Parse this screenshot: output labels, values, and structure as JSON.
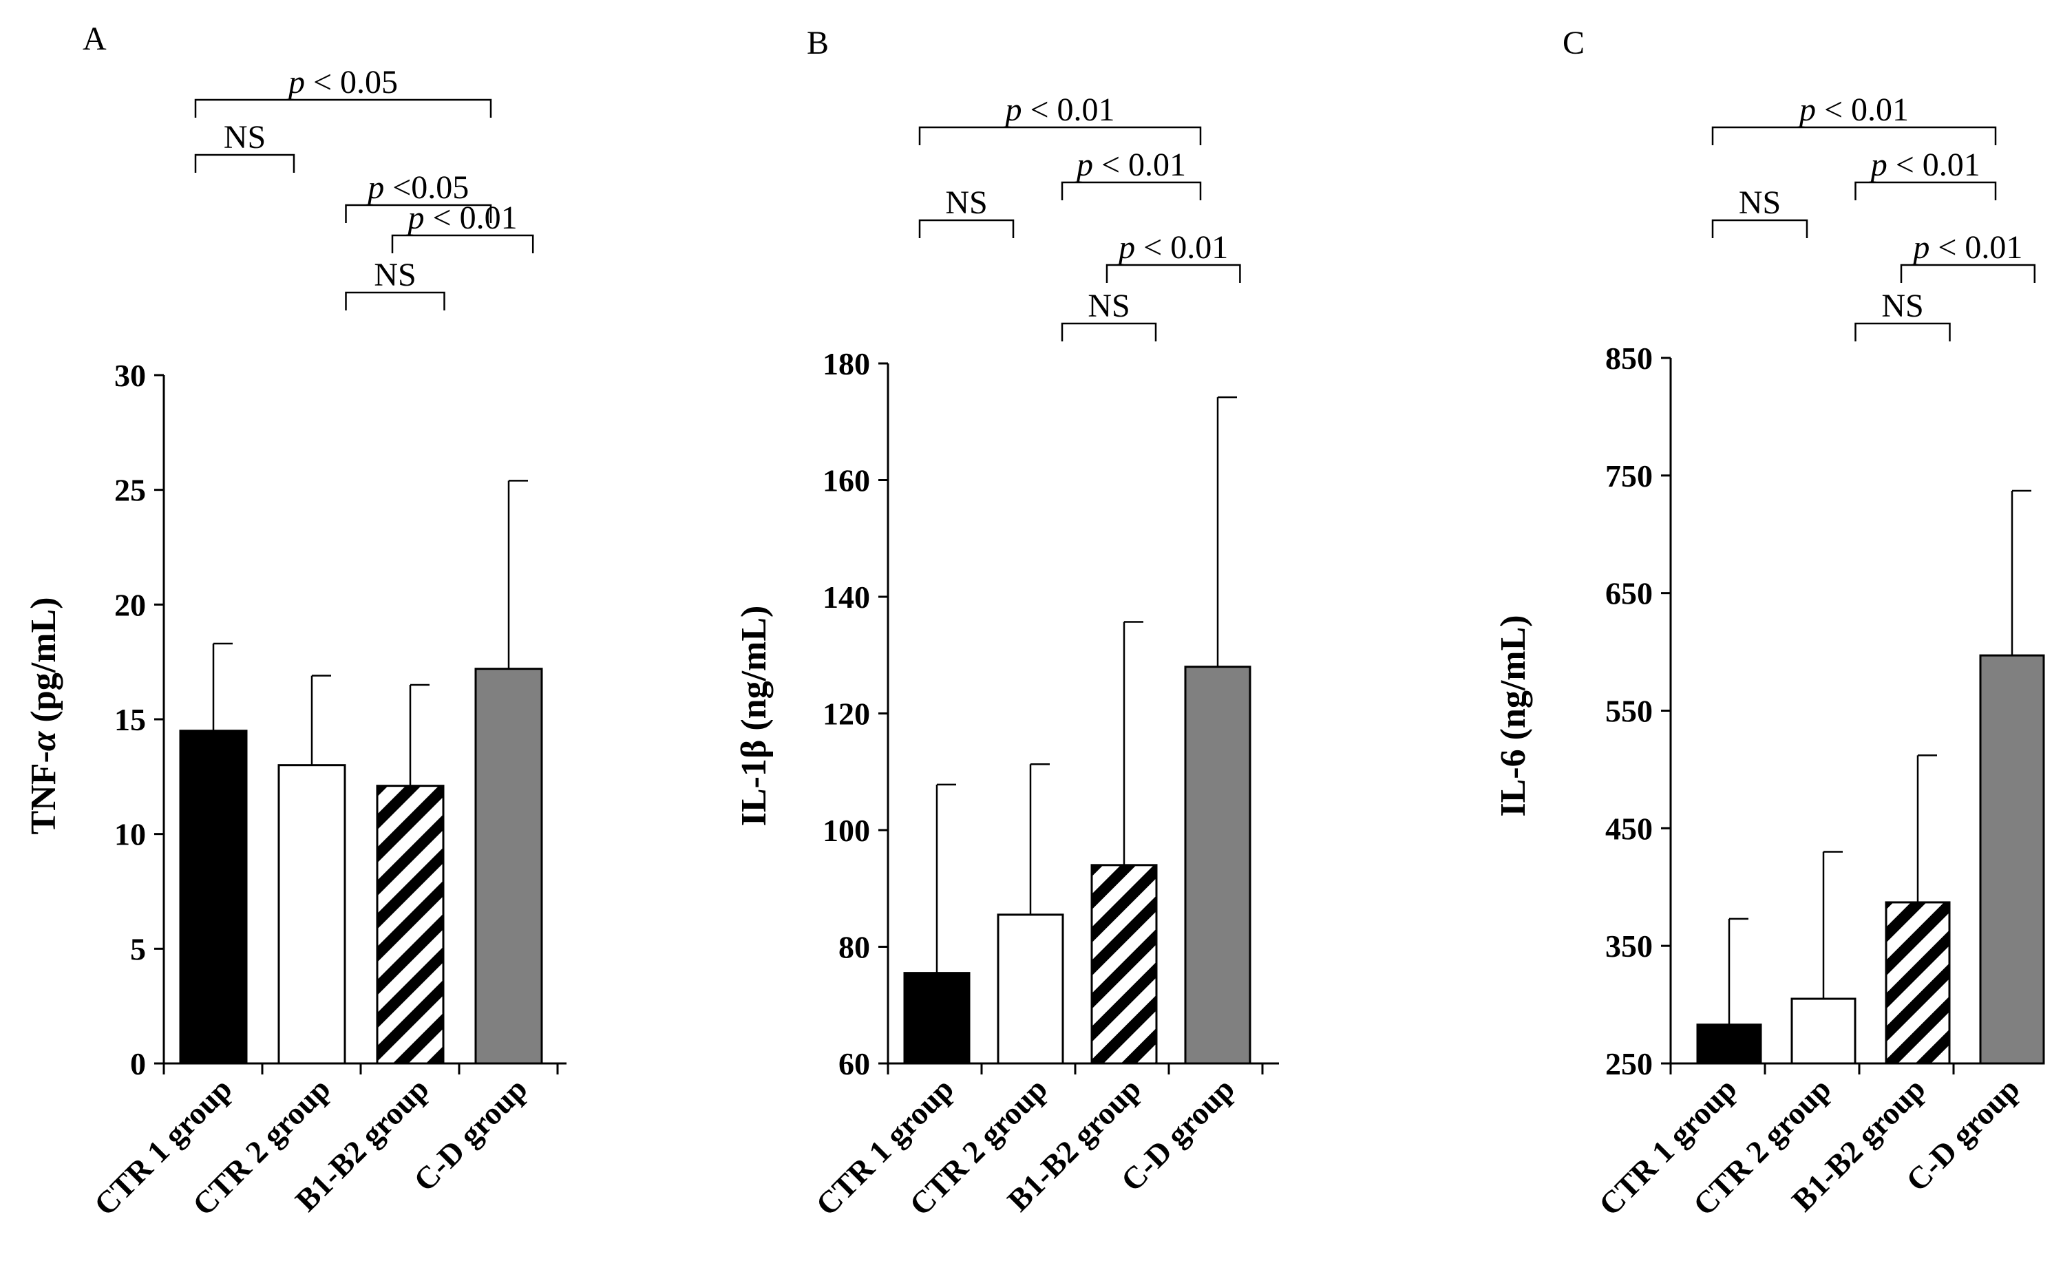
{
  "chart_data": [
    {
      "type": "bar",
      "panel_label": "A",
      "ylabel_main": "TNF-",
      "ylabel_greek": "α",
      "ylabel_unit": " (pg/mL)",
      "ylim": [
        0,
        30
      ],
      "yticks": [
        0,
        5,
        10,
        15,
        20,
        25,
        30
      ],
      "categories": [
        "CTR 1 group",
        "CTR 2 group",
        "B1-B2 group",
        "C-D group"
      ],
      "values": [
        14.5,
        13.0,
        12.1,
        17.2
      ],
      "error_upper": [
        18.3,
        16.9,
        16.5,
        25.4
      ],
      "bar_styles": [
        "black",
        "white",
        "striped",
        "gray"
      ],
      "comparisons": [
        {
          "from": 0,
          "to": 3,
          "label": "p < 0.05"
        },
        {
          "from": 0,
          "to": 1,
          "label": "NS"
        },
        {
          "from": 1.5,
          "to": 3,
          "label": "p <0.05"
        },
        {
          "from": 2,
          "to": 3.4,
          "label": "p < 0.01"
        },
        {
          "from": 1.5,
          "to": 2.5,
          "label": "NS"
        }
      ]
    },
    {
      "type": "bar",
      "panel_label": "B",
      "ylabel_main": "IL-1β",
      "ylabel_greek": "",
      "ylabel_unit": " (ng/mL)",
      "ylim": [
        60,
        180
      ],
      "yticks": [
        60,
        80,
        100,
        120,
        140,
        160,
        180
      ],
      "categories": [
        "CTR 1 group",
        "CTR 2 group",
        "B1-B2 group",
        "C-D group"
      ],
      "values": [
        75.5,
        85.5,
        94.0,
        128.0
      ],
      "error_upper": [
        107.8,
        111.3,
        135.7,
        174.2
      ],
      "bar_styles": [
        "black",
        "white",
        "striped",
        "gray"
      ],
      "comparisons": [
        {
          "from": 0,
          "to": 3,
          "label": "p < 0.01"
        },
        {
          "from": 0,
          "to": 1,
          "label": "NS"
        },
        {
          "from": 1.5,
          "to": 3,
          "label": "p < 0.01"
        },
        {
          "from": 2,
          "to": 3.4,
          "label": "p < 0.01"
        },
        {
          "from": 1.5,
          "to": 2.5,
          "label": "NS"
        }
      ]
    },
    {
      "type": "bar",
      "panel_label": "C",
      "ylabel_main": "IL-6",
      "ylabel_greek": "",
      "ylabel_unit": " (ng/mL)",
      "ylim": [
        250,
        850
      ],
      "yticks": [
        250,
        350,
        450,
        550,
        650,
        750,
        850
      ],
      "categories": [
        "CTR 1 group",
        "CTR 2 group",
        "B1-B2 group",
        "C-D group"
      ],
      "values": [
        283,
        305,
        387,
        597
      ],
      "error_upper": [
        373,
        430,
        512,
        737
      ],
      "bar_styles": [
        "black",
        "white",
        "striped",
        "gray"
      ],
      "comparisons": [
        {
          "from": 0,
          "to": 3,
          "label": "p < 0.01"
        },
        {
          "from": 0,
          "to": 1,
          "label": "NS"
        },
        {
          "from": 1.5,
          "to": 3,
          "label": "p < 0.01"
        },
        {
          "from": 2,
          "to": 3.4,
          "label": "p < 0.01"
        },
        {
          "from": 1.5,
          "to": 2.5,
          "label": "NS"
        }
      ]
    }
  ],
  "colors": {
    "black_bar": "#000000",
    "white_bar": "#ffffff",
    "gray_bar": "#808080",
    "axis": "#000000"
  }
}
